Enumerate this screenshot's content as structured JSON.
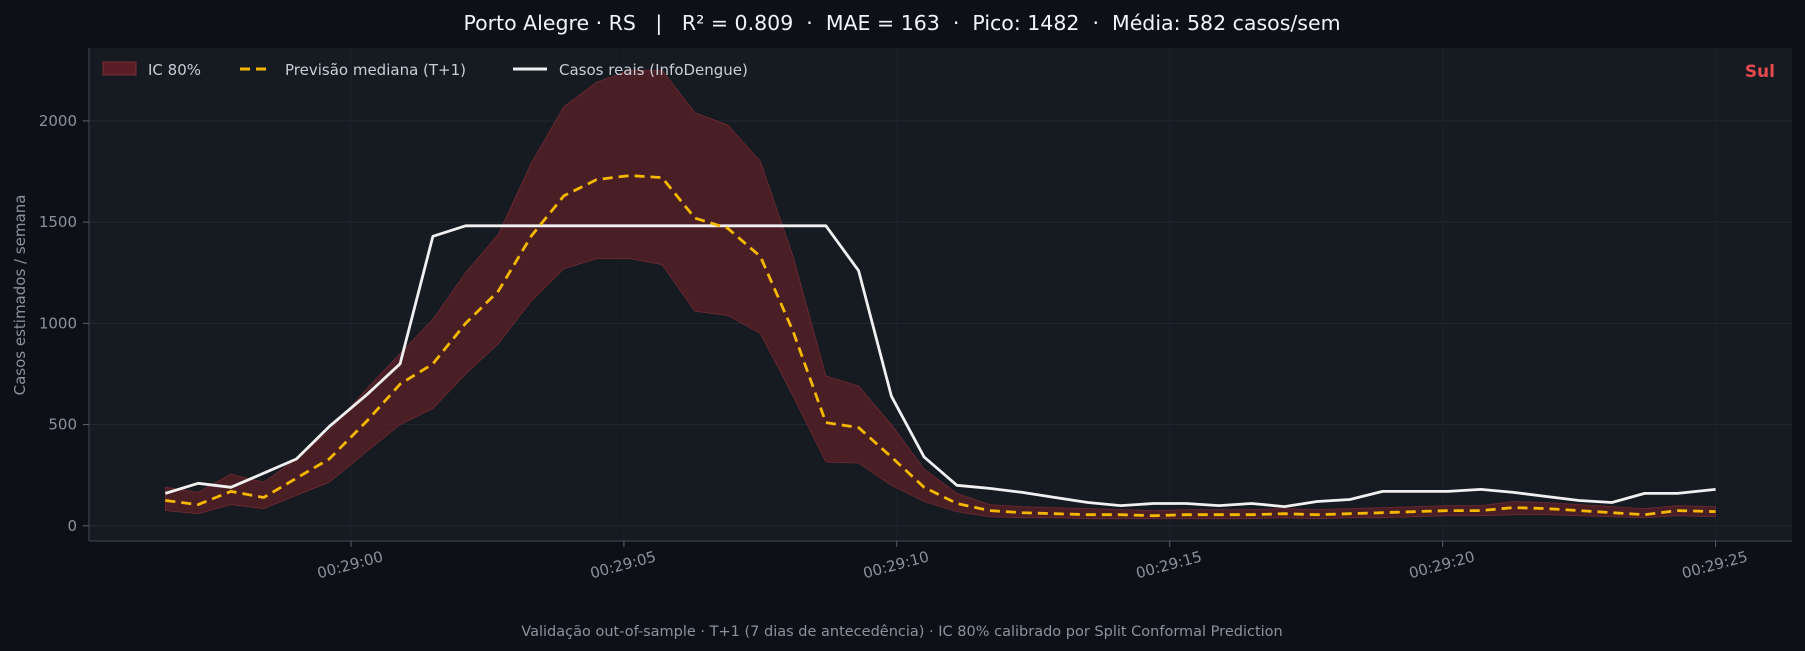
{
  "title": "Porto Alegre · RS   |   R² = 0.809  ·  MAE = 163  ·  Pico: 1482  ·  Média: 582 casos/sem",
  "footer": "Validação out-of-sample · T+1 (7 dias de antecedência) · IC 80% calibrado por Split Conformal Prediction",
  "region_label": "Sul",
  "colors": {
    "background": "#0d1117",
    "plot_background": "#161b22",
    "band": "#5a1f26",
    "forecast": "#f5b800",
    "actual": "#f0f0f0",
    "region": "#e5484d"
  },
  "legend": {
    "band": "IC 80%",
    "forecast": "Previsão mediana (T+1)",
    "actual": "Casos reais (InfoDengue)"
  },
  "chart_data": {
    "type": "line",
    "ylabel": "Casos estimados / semana",
    "xlabel": "",
    "x_unit": "seconds",
    "x_ticks": [
      {
        "value": 0,
        "label": "00:29:00"
      },
      {
        "value": 5,
        "label": "00:29:05"
      },
      {
        "value": 10,
        "label": "00:29:10"
      },
      {
        "value": 15,
        "label": "00:29:15"
      },
      {
        "value": 20,
        "label": "00:29:20"
      },
      {
        "value": 25,
        "label": "00:29:25"
      }
    ],
    "y_ticks": [
      0,
      500,
      1000,
      1500,
      2000
    ],
    "xlim": [
      -4.8,
      26.4
    ],
    "ylim": [
      -75,
      2360
    ],
    "grid": true,
    "legend_position": "top-left",
    "x": [
      -3.4,
      -2.8,
      -2.2,
      -1.6,
      -1.0,
      -0.4,
      0.3,
      0.9,
      1.5,
      2.1,
      2.7,
      3.3,
      3.9,
      4.5,
      5.1,
      5.7,
      6.3,
      6.9,
      7.5,
      8.1,
      8.7,
      9.3,
      9.9,
      10.5,
      11.1,
      11.7,
      12.3,
      12.9,
      13.5,
      14.1,
      14.7,
      15.3,
      15.9,
      16.5,
      17.1,
      17.7,
      18.3,
      18.9,
      19.5,
      20.1,
      20.7,
      21.3,
      21.9,
      22.5,
      23.1,
      23.7,
      24.3,
      25.0
    ],
    "series": [
      {
        "name": "Casos reais (InfoDengue)",
        "values": [
          160,
          210,
          190,
          260,
          330,
          490,
          650,
          800,
          1430,
          1482,
          1482,
          1482,
          1482,
          1482,
          1482,
          1482,
          1482,
          1482,
          1482,
          1482,
          1482,
          1260,
          640,
          340,
          200,
          185,
          165,
          140,
          115,
          100,
          110,
          110,
          100,
          110,
          95,
          120,
          130,
          170,
          170,
          170,
          180,
          165,
          145,
          125,
          115,
          160,
          160,
          180
        ]
      },
      {
        "name": "Previsão mediana (T+1)",
        "values": [
          125,
          105,
          170,
          140,
          235,
          330,
          520,
          700,
          800,
          1000,
          1160,
          1430,
          1630,
          1710,
          1730,
          1720,
          1520,
          1470,
          1330,
          960,
          510,
          485,
          340,
          190,
          110,
          75,
          65,
          60,
          55,
          55,
          50,
          55,
          55,
          55,
          60,
          55,
          60,
          65,
          70,
          75,
          75,
          90,
          85,
          75,
          65,
          55,
          75,
          70
        ]
      },
      {
        "name": "IC 80%",
        "lower": [
          75,
          60,
          105,
          85,
          150,
          215,
          370,
          500,
          580,
          750,
          900,
          1110,
          1270,
          1320,
          1320,
          1290,
          1060,
          1040,
          950,
          640,
          315,
          310,
          200,
          120,
          70,
          45,
          40,
          40,
          35,
          35,
          35,
          35,
          35,
          35,
          40,
          35,
          40,
          40,
          45,
          50,
          50,
          55,
          55,
          50,
          45,
          40,
          50,
          45
        ],
        "upper": [
          190,
          165,
          255,
          215,
          330,
          470,
          680,
          850,
          1020,
          1250,
          1440,
          1790,
          2070,
          2190,
          2250,
          2250,
          2040,
          1980,
          1800,
          1330,
          740,
          690,
          500,
          280,
          160,
          105,
          95,
          90,
          85,
          80,
          75,
          80,
          80,
          80,
          85,
          80,
          85,
          90,
          95,
          100,
          100,
          120,
          115,
          105,
          95,
          85,
          100,
          95
        ]
      }
    ]
  }
}
